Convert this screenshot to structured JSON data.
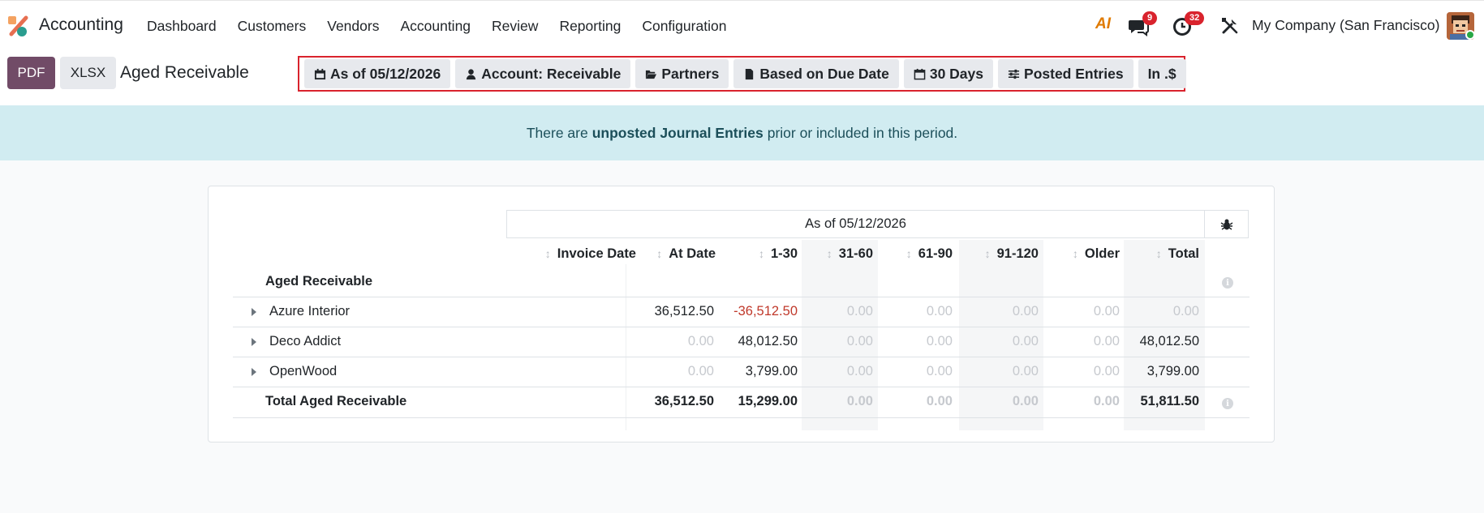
{
  "app": {
    "name": "Accounting"
  },
  "menu": [
    "Dashboard",
    "Customers",
    "Vendors",
    "Accounting",
    "Review",
    "Reporting",
    "Configuration"
  ],
  "systray": {
    "ai_label": "AI",
    "chat_count": "9",
    "activity_count": "32",
    "company": "My Company (San Francisco)"
  },
  "control": {
    "pdf_label": "PDF",
    "xlsx_label": "XLSX",
    "title": "Aged Receivable",
    "filters": [
      "As of 05/12/2026",
      "Account: Receivable",
      "Partners",
      "Based on Due Date",
      "30 Days",
      "Posted Entries",
      "In .$"
    ]
  },
  "alert": {
    "prefix": "There are",
    "link": "unposted Journal Entries",
    "suffix": "prior or included in this period."
  },
  "report": {
    "header": "As of 05/12/2026",
    "columns": [
      "Invoice Date",
      "At Date",
      "1-30",
      "31-60",
      "61-90",
      "91-120",
      "Older",
      "Total"
    ],
    "section": "Aged Receivable",
    "rows": [
      {
        "name": "Azure Interior",
        "values": [
          "",
          "36,512.50",
          "-36,512.50",
          "0.00",
          "0.00",
          "0.00",
          "0.00",
          "0.00"
        ]
      },
      {
        "name": "Deco Addict",
        "values": [
          "",
          "0.00",
          "48,012.50",
          "0.00",
          "0.00",
          "0.00",
          "0.00",
          "48,012.50"
        ]
      },
      {
        "name": "OpenWood",
        "values": [
          "",
          "0.00",
          "3,799.00",
          "0.00",
          "0.00",
          "0.00",
          "0.00",
          "3,799.00"
        ]
      }
    ],
    "total": {
      "name": "Total Aged Receivable",
      "values": [
        "",
        "36,512.50",
        "15,299.00",
        "0.00",
        "0.00",
        "0.00",
        "0.00",
        "51,811.50"
      ]
    }
  }
}
